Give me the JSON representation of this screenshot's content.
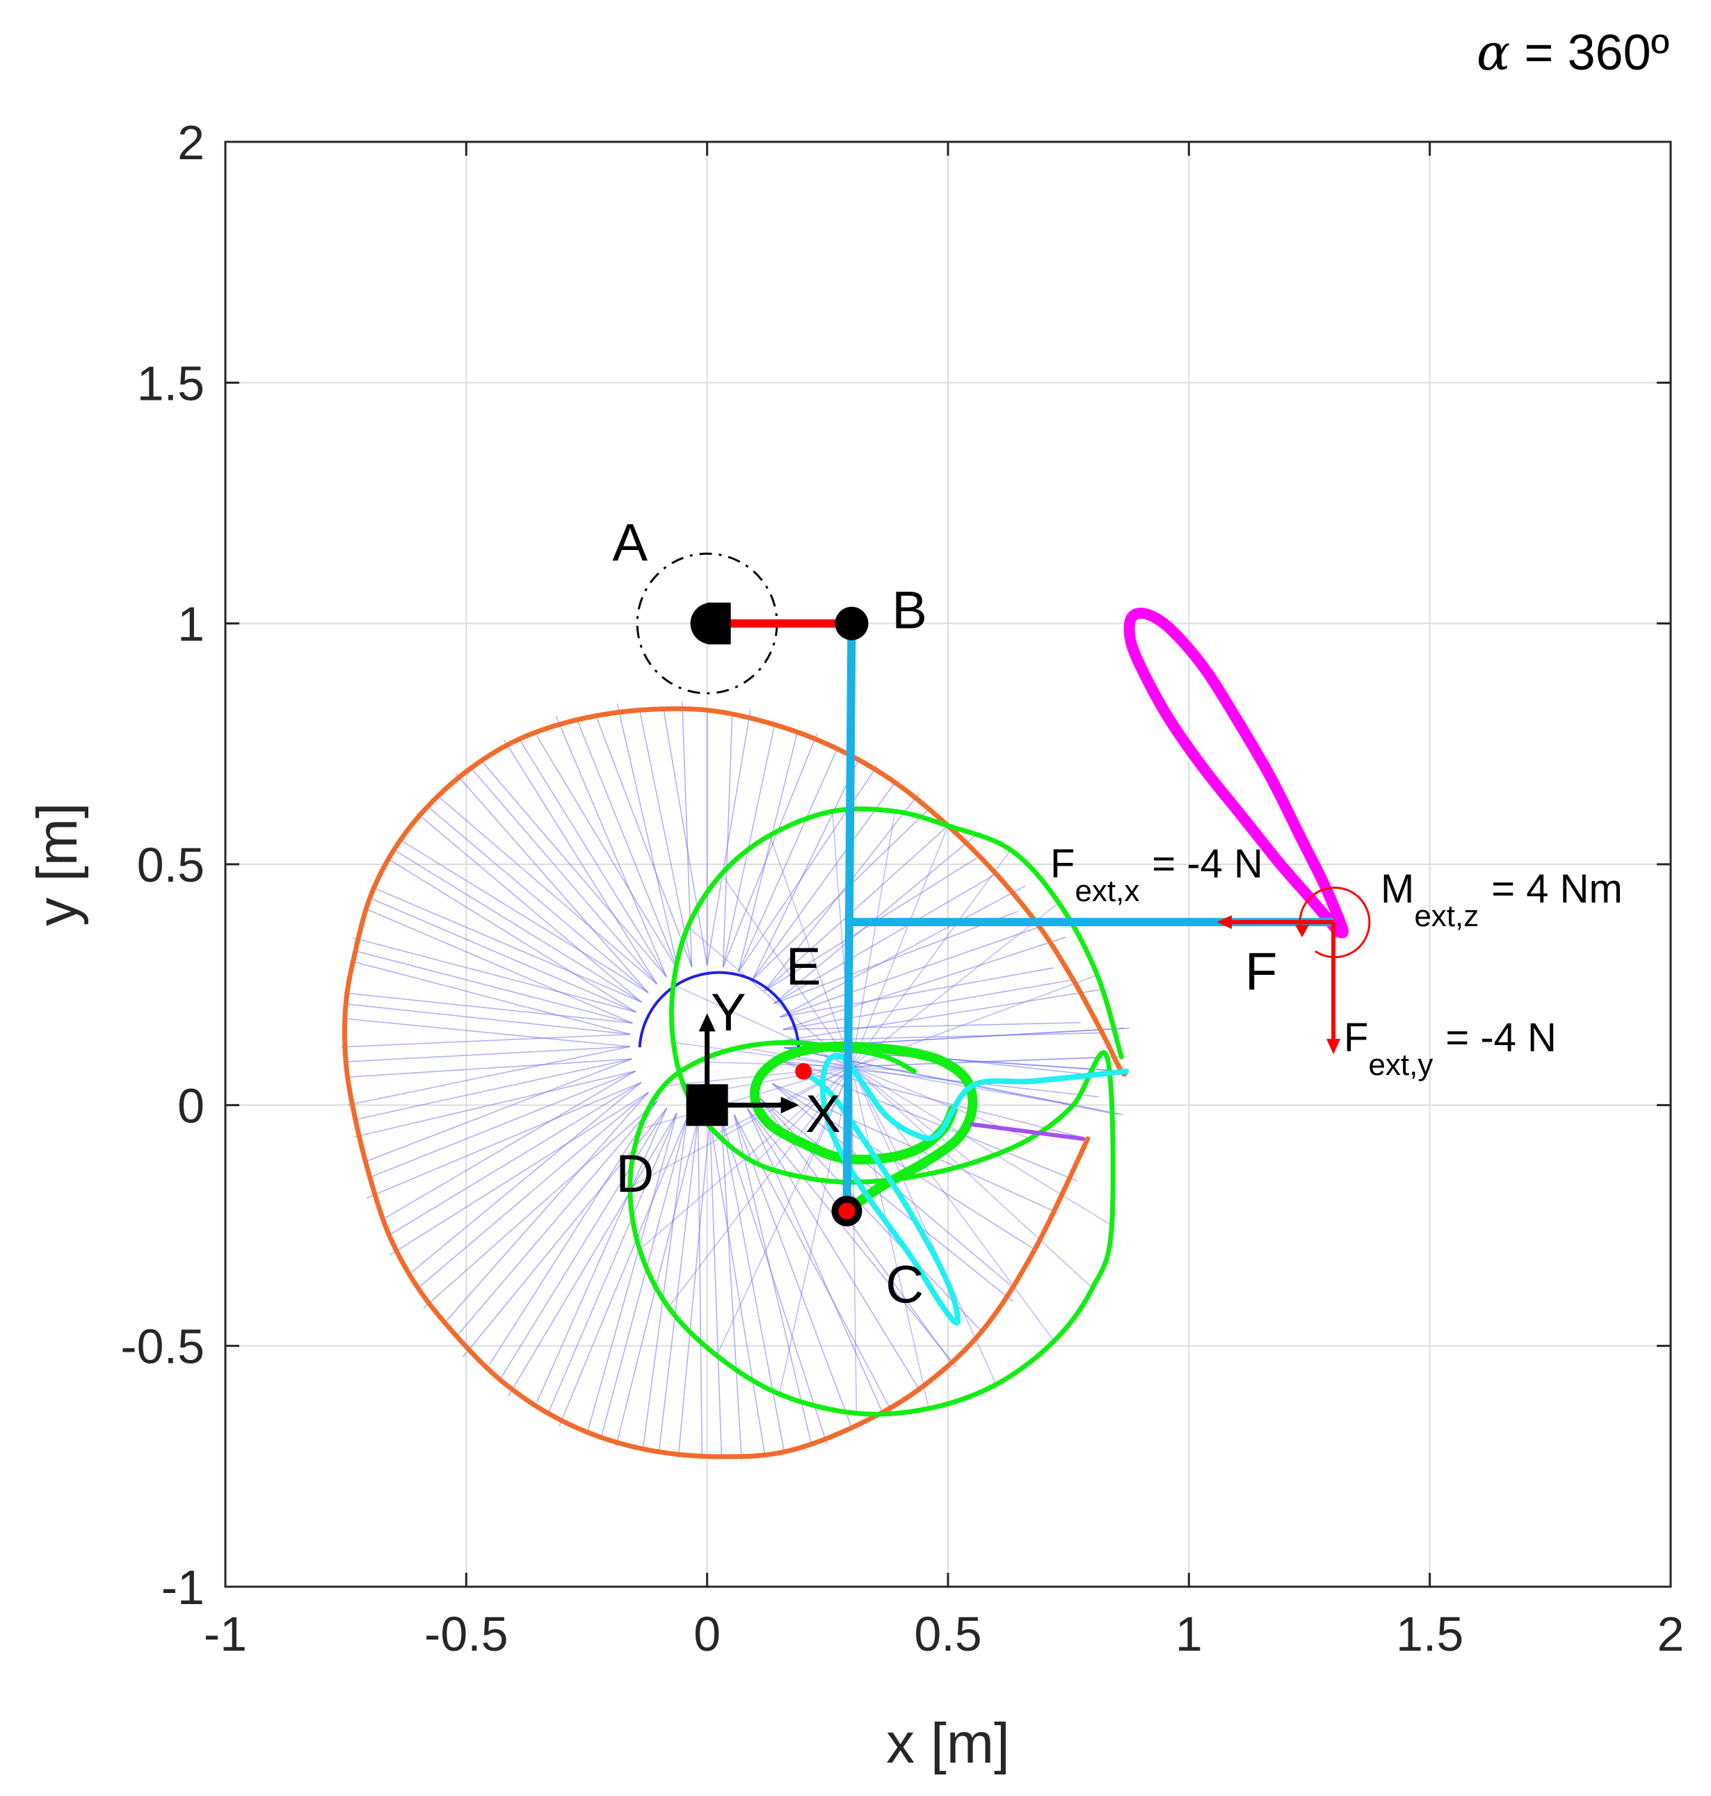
{
  "chart_data": {
    "type": "line",
    "title": "α = 360º",
    "title_symbol": "α",
    "title_value": "= 360º",
    "xlabel": "x [m]",
    "ylabel": "y [m]",
    "xlim": [
      -1,
      2
    ],
    "ylim": [
      -1,
      2
    ],
    "xticks": [
      -1,
      -0.5,
      0,
      0.5,
      1,
      1.5,
      2
    ],
    "yticks": [
      -1,
      -0.5,
      0,
      0.5,
      1,
      1.5,
      2
    ],
    "xtick_labels": [
      "-1",
      "-0.5",
      "0",
      "0.5",
      "1",
      "1.5",
      "2"
    ],
    "ytick_labels": [
      "-1",
      "-0.5",
      "0",
      "0.5",
      "1",
      "1.5",
      "2"
    ],
    "grid": true,
    "colors": {
      "orange": "#f26b2c",
      "green": "#11ee11",
      "cyan": "#20f0f0",
      "magenta": "#ff00ff",
      "blue_thin": "#6f6ff2",
      "link_blue": "#19b1e6",
      "red": "#ff0000",
      "purple": "#a64df2",
      "black": "#000000"
    },
    "mechanism": {
      "A": [
        0,
        1
      ],
      "B": [
        0.3,
        1
      ],
      "C": [
        0.29,
        -0.22
      ],
      "D": [
        0,
        0
      ],
      "E": [
        0.2,
        0.07
      ],
      "F": [
        1.3,
        0.38
      ],
      "frame_corner": [
        0.3,
        0.38
      ],
      "crank_circle_radius": 0.145
    },
    "point_labels": [
      {
        "text": "A",
        "x": -0.16,
        "y": 1.13
      },
      {
        "text": "B",
        "x": 0.42,
        "y": 0.99
      },
      {
        "text": "C",
        "x": 0.41,
        "y": -0.41
      },
      {
        "text": "D",
        "x": -0.15,
        "y": -0.18
      },
      {
        "text": "E",
        "x": 0.2,
        "y": 0.25
      },
      {
        "text": "F",
        "x": 1.15,
        "y": 0.24
      }
    ],
    "frame": {
      "y_label": "Y",
      "x_label": "X"
    },
    "annotations": {
      "fx": {
        "main": "F",
        "sub": "ext,x",
        "value": "= -4 N"
      },
      "fy": {
        "main": "F",
        "sub": "ext,y",
        "value": "= -4 N"
      },
      "mz": {
        "main": "M",
        "sub": "ext,z",
        "value": "= 4 Nm"
      }
    },
    "series": [
      {
        "name": "orange",
        "description": "outer envelope curve (open arc)",
        "x": [
          0.79,
          0.68,
          0.57,
          0.44,
          0.3,
          0.16,
          0.03,
          -0.1,
          -0.22,
          -0.33,
          -0.43,
          -0.52,
          -0.6,
          -0.66,
          -0.7,
          -0.73,
          -0.75,
          -0.75,
          -0.73,
          -0.7,
          -0.65,
          -0.58,
          -0.49,
          -0.39,
          -0.27,
          -0.14,
          0,
          0.14,
          0.27,
          0.39,
          0.5,
          0.6,
          0.69,
          0.76,
          0.82,
          0.86,
          0.87
        ],
        "y": [
          -0.07,
          -0.3,
          -0.47,
          -0.59,
          -0.67,
          -0.72,
          -0.73,
          -0.72,
          -0.69,
          -0.64,
          -0.57,
          -0.48,
          -0.38,
          -0.27,
          -0.15,
          -0.03,
          0.09,
          0.21,
          0.32,
          0.43,
          0.53,
          0.62,
          0.7,
          0.76,
          0.8,
          0.82,
          0.82,
          0.79,
          0.74,
          0.67,
          0.58,
          0.48,
          0.37,
          0.26,
          0.15,
          0.07,
          0.07
        ]
      },
      {
        "name": "green",
        "description": "large coupler-point curve",
        "x": [
          0.86,
          0.81,
          0.73,
          0.63,
          0.5,
          0.39,
          0.26,
          0.13,
          0.03,
          -0.04,
          -0.07,
          -0.07,
          -0.04,
          0.02,
          0.1,
          0.2,
          0.3,
          0.42,
          0.55,
          0.67,
          0.76,
          0.83,
          0.84,
          0.8,
          0.72,
          0.6,
          0.46,
          0.31,
          0.15,
          0.02,
          -0.08,
          -0.14,
          -0.16,
          -0.14,
          -0.09,
          -0.02,
          0.07,
          0.17,
          0.27,
          0.37,
          0.43
        ],
        "y": [
          0.1,
          0.27,
          0.42,
          0.53,
          0.58,
          0.61,
          0.61,
          0.56,
          0.48,
          0.37,
          0.25,
          0.13,
          0.02,
          -0.06,
          -0.12,
          -0.15,
          -0.16,
          -0.15,
          -0.12,
          -0.07,
          0.0,
          0.1,
          -0.25,
          -0.38,
          -0.49,
          -0.58,
          -0.63,
          -0.64,
          -0.6,
          -0.52,
          -0.42,
          -0.3,
          -0.17,
          -0.05,
          0.04,
          0.09,
          0.12,
          0.13,
          0.12,
          0.1,
          0.07
        ]
      },
      {
        "name": "green-bold",
        "description": "small bold coupler loop",
        "x": [
          0.29,
          0.36,
          0.45,
          0.52,
          0.55,
          0.54,
          0.49,
          0.42,
          0.33,
          0.24,
          0.16,
          0.11,
          0.1,
          0.13,
          0.2,
          0.28,
          0.37,
          0.44,
          0.49,
          0.51
        ],
        "y": [
          -0.22,
          -0.17,
          -0.12,
          -0.07,
          -0.01,
          0.05,
          0.09,
          0.11,
          0.12,
          0.12,
          0.1,
          0.06,
          0.01,
          -0.04,
          -0.08,
          -0.11,
          -0.11,
          -0.09,
          -0.05,
          -0.01
        ]
      },
      {
        "name": "cyan",
        "description": "long narrow loop through C",
        "x": [
          0.2,
          0.26,
          0.33,
          0.42,
          0.5,
          0.52,
          0.49,
          0.42,
          0.32,
          0.26,
          0.24,
          0.25,
          0.28,
          0.32,
          0.37,
          0.43,
          0.48,
          0.55,
          0.68,
          0.87
        ],
        "y": [
          0.07,
          0.02,
          -0.08,
          -0.22,
          -0.37,
          -0.45,
          -0.42,
          -0.31,
          -0.17,
          -0.06,
          0.03,
          0.09,
          0.1,
          0.05,
          -0.02,
          -0.06,
          -0.06,
          0.04,
          0.05,
          0.07
        ]
      },
      {
        "name": "magenta",
        "description": "teardrop path of F",
        "x": [
          1.31,
          1.26,
          1.19,
          1.11,
          1.03,
          0.96,
          0.91,
          0.88,
          0.88,
          0.91,
          0.96,
          1.03,
          1.1,
          1.17,
          1.23,
          1.28,
          1.31,
          1.32,
          1.31
        ],
        "y": [
          0.36,
          0.42,
          0.5,
          0.6,
          0.7,
          0.8,
          0.89,
          0.96,
          1.01,
          1.02,
          0.99,
          0.91,
          0.8,
          0.68,
          0.56,
          0.46,
          0.39,
          0.36,
          0.36
        ]
      },
      {
        "name": "purple",
        "description": "short closing segment",
        "x": [
          0.55,
          0.78
        ],
        "y": [
          -0.04,
          -0.07
        ]
      }
    ]
  }
}
